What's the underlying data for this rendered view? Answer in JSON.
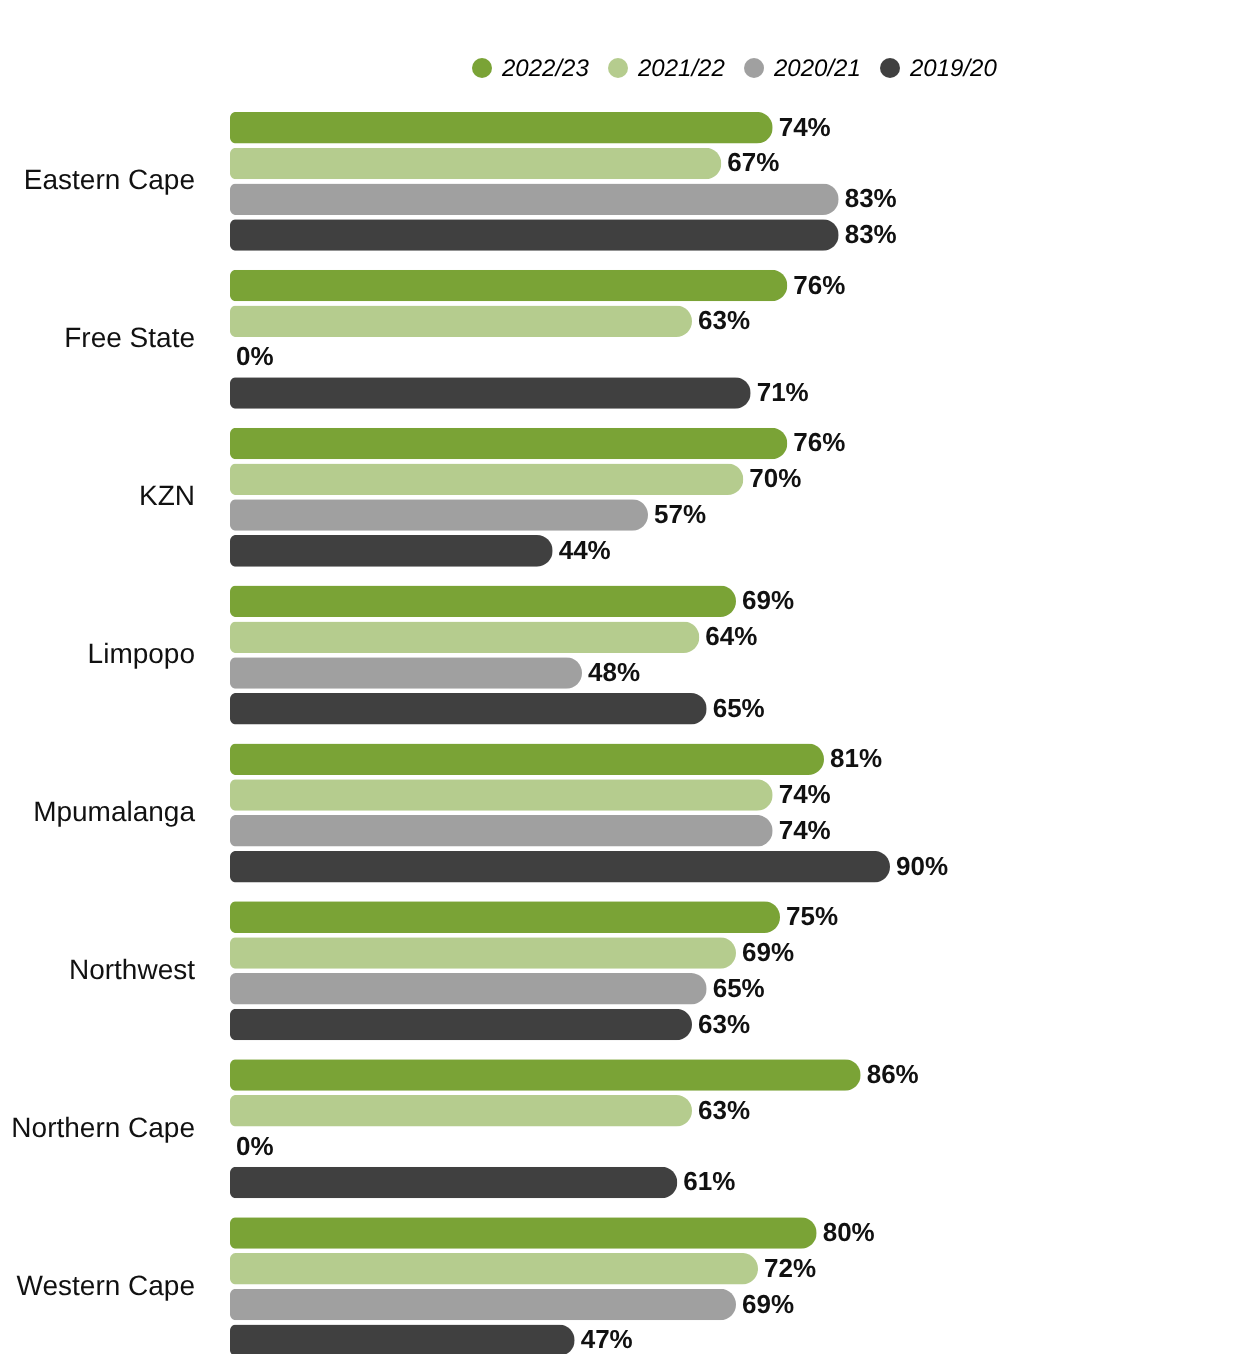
{
  "chart_data": {
    "type": "bar",
    "orientation": "horizontal",
    "categories": [
      "Eastern Cape",
      "Free State",
      "KZN",
      "Limpopo",
      "Mpumalanga",
      "Northwest",
      "Northern Cape",
      "Western Cape"
    ],
    "series": [
      {
        "name": "2022/23",
        "color": "#7aa336",
        "values": [
          74,
          76,
          76,
          69,
          81,
          75,
          86,
          80
        ],
        "value_labels": [
          "74%",
          "76%",
          "76%",
          "69%",
          "81%",
          "75%",
          "86%",
          "80%"
        ]
      },
      {
        "name": "2021/22",
        "color": "#b5cc8e",
        "values": [
          67,
          63,
          70,
          64,
          74,
          69,
          63,
          72
        ],
        "value_labels": [
          "67%",
          "63%",
          "70%",
          "64%",
          "74%",
          "69%",
          "63%",
          "72%"
        ]
      },
      {
        "name": "2020/21",
        "color": "#a0a0a0",
        "values": [
          83,
          0,
          57,
          48,
          74,
          65,
          0,
          69
        ],
        "value_labels": [
          "83%",
          "0%",
          "57%",
          "48%",
          "74%",
          "65%",
          "0%",
          "69%"
        ]
      },
      {
        "name": "2019/20",
        "color": "#404040",
        "values": [
          83,
          71,
          44,
          65,
          90,
          63,
          61,
          47
        ],
        "value_labels": [
          "83%",
          "71%",
          "44%",
          "65%",
          "90%",
          "63%",
          "61%",
          "47%"
        ]
      }
    ],
    "legend": "top right"
  }
}
